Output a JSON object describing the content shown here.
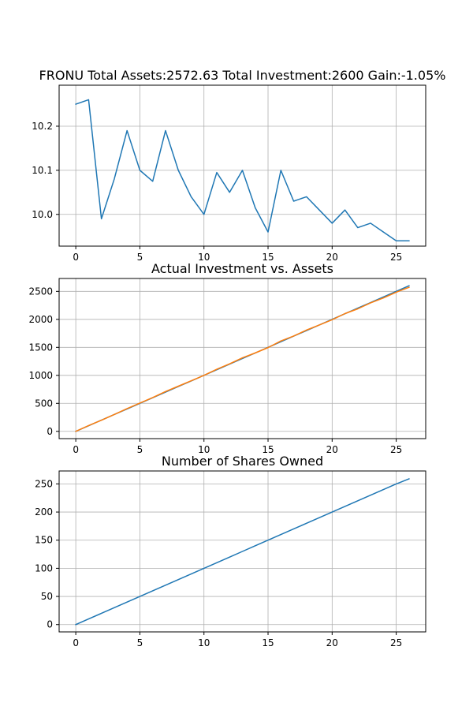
{
  "chart_data": [
    {
      "type": "line",
      "title": "FRONU Total Assets:2572.63  Total Investment:2600  Gain:-1.05%",
      "xlabel": "",
      "ylabel": "",
      "xlim": [
        -1.3,
        27.3
      ],
      "ylim": [
        9.928,
        10.293
      ],
      "xticks": [
        0,
        5,
        10,
        15,
        20,
        25
      ],
      "yticks": [
        10.0,
        10.1,
        10.2
      ],
      "ytick_labels": [
        "10.0",
        "10.1",
        "10.2"
      ],
      "grid": true,
      "series": [
        {
          "color": "#1f77b4",
          "x": [
            0,
            1,
            2,
            3,
            4,
            5,
            6,
            7,
            8,
            9,
            10,
            11,
            12,
            13,
            14,
            15,
            16,
            17,
            18,
            19,
            20,
            21,
            22,
            23,
            24,
            25,
            26
          ],
          "y": [
            10.25,
            10.26,
            9.99,
            10.08,
            10.19,
            10.1,
            10.075,
            10.19,
            10.1,
            10.04,
            10.0,
            10.095,
            10.05,
            10.1,
            10.015,
            9.96,
            10.1,
            10.03,
            10.04,
            10.01,
            9.98,
            10.01,
            9.97,
            9.98,
            9.96,
            9.94,
            9.94
          ]
        }
      ]
    },
    {
      "type": "line",
      "title": "Actual Investment vs. Assets",
      "xlabel": "",
      "ylabel": "",
      "xlim": [
        -1.3,
        27.3
      ],
      "ylim": [
        -130,
        2730
      ],
      "xticks": [
        0,
        5,
        10,
        15,
        20,
        25
      ],
      "yticks": [
        0,
        500,
        1000,
        1500,
        2000,
        2500
      ],
      "ytick_labels": [
        "0",
        "500",
        "1000",
        "1500",
        "2000",
        "2500"
      ],
      "grid": true,
      "series": [
        {
          "color": "#1f77b4",
          "x": [
            0,
            1,
            2,
            3,
            4,
            5,
            6,
            7,
            8,
            9,
            10,
            11,
            12,
            13,
            14,
            15,
            16,
            17,
            18,
            19,
            20,
            21,
            22,
            23,
            24,
            25,
            26
          ],
          "y": [
            0,
            100,
            200,
            300,
            400,
            500,
            600,
            700,
            800,
            900,
            1000,
            1100,
            1200,
            1300,
            1400,
            1500,
            1600,
            1700,
            1800,
            1900,
            2000,
            2100,
            2200,
            2300,
            2400,
            2500,
            2600
          ]
        },
        {
          "color": "#ff7f0e",
          "x": [
            0,
            1,
            2,
            3,
            4,
            5,
            6,
            7,
            8,
            9,
            10,
            11,
            12,
            13,
            14,
            15,
            16,
            17,
            18,
            19,
            20,
            21,
            22,
            23,
            24,
            25,
            26
          ],
          "y": [
            0,
            102.6,
            198.8,
            300.2,
            406.6,
            504.9,
            603.4,
            711.7,
            806.9,
            902.4,
            999.4,
            1109.5,
            1205.4,
            1312.9,
            1400.5,
            1495.6,
            1614.9,
            1702.7,
            1808.9,
            1899.6,
            1993.2,
            2103.0,
            2187.6,
            2294.3,
            2382.2,
            2484.4,
            2572.63
          ]
        }
      ]
    },
    {
      "type": "line",
      "title": "Number of Shares Owned",
      "xlabel": "",
      "ylabel": "",
      "xlim": [
        -1.3,
        27.3
      ],
      "ylim": [
        -13,
        273
      ],
      "xticks": [
        0,
        5,
        10,
        15,
        20,
        25
      ],
      "yticks": [
        0,
        50,
        100,
        150,
        200,
        250
      ],
      "ytick_labels": [
        "0",
        "50",
        "100",
        "150",
        "200",
        "250"
      ],
      "grid": true,
      "series": [
        {
          "color": "#1f77b4",
          "x": [
            0,
            1,
            2,
            3,
            4,
            5,
            6,
            7,
            8,
            9,
            10,
            11,
            12,
            13,
            14,
            15,
            16,
            17,
            18,
            19,
            20,
            21,
            22,
            23,
            24,
            25,
            26
          ],
          "y": [
            0,
            10,
            20,
            30,
            40,
            50,
            60,
            70,
            80,
            90,
            100,
            110,
            120,
            130,
            140,
            150,
            160,
            170,
            180,
            190,
            200,
            210,
            220,
            230,
            240,
            250,
            259
          ]
        }
      ]
    }
  ]
}
